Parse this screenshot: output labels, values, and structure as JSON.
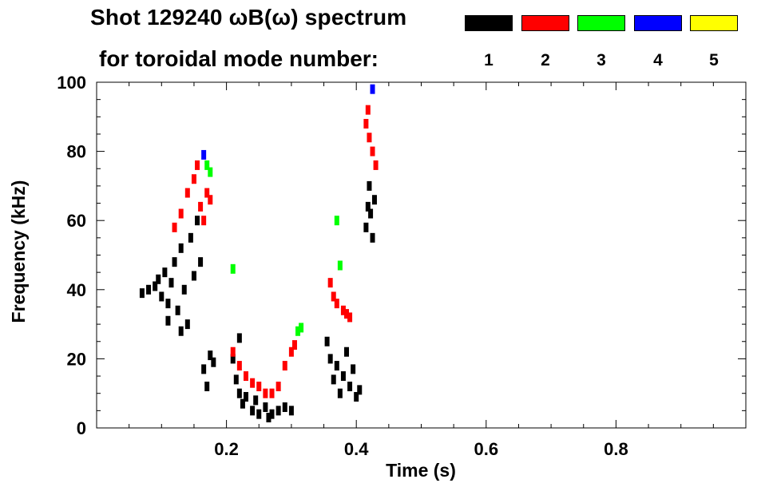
{
  "title": "Shot 129240 ωB(ω) spectrum",
  "subtitle": "for toroidal mode number:",
  "legend": [
    {
      "label": "1",
      "color": "#000000"
    },
    {
      "label": "2",
      "color": "#ff0000"
    },
    {
      "label": "3",
      "color": "#00ff00"
    },
    {
      "label": "4",
      "color": "#0000ff"
    },
    {
      "label": "5",
      "color": "#ffff00"
    }
  ],
  "chart_data": {
    "type": "scatter",
    "title": "Shot 129240 ωB(ω) spectrum",
    "xlabel": "Time (s)",
    "ylabel": "Frequency (kHz)",
    "xlim": [
      0.0,
      1.0
    ],
    "ylim": [
      0,
      100
    ],
    "xticks": [
      {
        "v": 0.2,
        "label": "0.2"
      },
      {
        "v": 0.4,
        "label": "0.4"
      },
      {
        "v": 0.6,
        "label": "0.6"
      },
      {
        "v": 0.8,
        "label": "0.8"
      }
    ],
    "yticks": [
      {
        "v": 0,
        "label": "0"
      },
      {
        "v": 20,
        "label": "20"
      },
      {
        "v": 40,
        "label": "40"
      },
      {
        "v": 60,
        "label": "60"
      },
      {
        "v": 80,
        "label": "80"
      },
      {
        "v": 100,
        "label": "100"
      }
    ],
    "series": [
      {
        "name": "n=1",
        "color": "#000000",
        "points": [
          [
            0.07,
            39
          ],
          [
            0.08,
            40
          ],
          [
            0.09,
            41
          ],
          [
            0.095,
            43
          ],
          [
            0.1,
            38
          ],
          [
            0.105,
            45
          ],
          [
            0.11,
            36
          ],
          [
            0.115,
            42
          ],
          [
            0.12,
            48
          ],
          [
            0.125,
            34
          ],
          [
            0.13,
            52
          ],
          [
            0.135,
            40
          ],
          [
            0.14,
            30
          ],
          [
            0.145,
            55
          ],
          [
            0.15,
            44
          ],
          [
            0.155,
            60
          ],
          [
            0.16,
            48
          ],
          [
            0.13,
            28
          ],
          [
            0.11,
            31
          ],
          [
            0.165,
            17
          ],
          [
            0.17,
            12
          ],
          [
            0.175,
            21
          ],
          [
            0.18,
            19
          ],
          [
            0.21,
            20
          ],
          [
            0.215,
            14
          ],
          [
            0.22,
            10
          ],
          [
            0.225,
            7
          ],
          [
            0.23,
            9
          ],
          [
            0.24,
            5
          ],
          [
            0.25,
            4
          ],
          [
            0.26,
            6
          ],
          [
            0.27,
            4
          ],
          [
            0.28,
            5
          ],
          [
            0.29,
            6
          ],
          [
            0.3,
            5
          ],
          [
            0.22,
            26
          ],
          [
            0.245,
            8
          ],
          [
            0.265,
            3
          ],
          [
            0.355,
            25
          ],
          [
            0.36,
            20
          ],
          [
            0.365,
            14
          ],
          [
            0.37,
            18
          ],
          [
            0.375,
            10
          ],
          [
            0.38,
            15
          ],
          [
            0.385,
            22
          ],
          [
            0.39,
            12
          ],
          [
            0.395,
            17
          ],
          [
            0.4,
            9
          ],
          [
            0.405,
            11
          ],
          [
            0.415,
            58
          ],
          [
            0.418,
            64
          ],
          [
            0.42,
            70
          ],
          [
            0.422,
            62
          ],
          [
            0.425,
            55
          ],
          [
            0.428,
            66
          ]
        ]
      },
      {
        "name": "n=2",
        "color": "#ff0000",
        "points": [
          [
            0.12,
            58
          ],
          [
            0.13,
            62
          ],
          [
            0.14,
            68
          ],
          [
            0.15,
            72
          ],
          [
            0.155,
            76
          ],
          [
            0.16,
            64
          ],
          [
            0.165,
            60
          ],
          [
            0.17,
            68
          ],
          [
            0.175,
            66
          ],
          [
            0.21,
            22
          ],
          [
            0.22,
            18
          ],
          [
            0.23,
            15
          ],
          [
            0.24,
            13
          ],
          [
            0.25,
            12
          ],
          [
            0.26,
            10
          ],
          [
            0.27,
            10
          ],
          [
            0.28,
            12
          ],
          [
            0.29,
            18
          ],
          [
            0.3,
            22
          ],
          [
            0.305,
            24
          ],
          [
            0.36,
            42
          ],
          [
            0.365,
            38
          ],
          [
            0.37,
            36
          ],
          [
            0.38,
            34
          ],
          [
            0.385,
            33
          ],
          [
            0.39,
            32
          ],
          [
            0.415,
            88
          ],
          [
            0.42,
            84
          ],
          [
            0.425,
            80
          ],
          [
            0.43,
            76
          ],
          [
            0.418,
            92
          ]
        ]
      },
      {
        "name": "n=3",
        "color": "#00ff00",
        "points": [
          [
            0.17,
            76
          ],
          [
            0.175,
            74
          ],
          [
            0.21,
            46
          ],
          [
            0.31,
            28
          ],
          [
            0.315,
            29
          ],
          [
            0.37,
            60
          ],
          [
            0.375,
            47
          ]
        ]
      },
      {
        "name": "n=4",
        "color": "#0000ff",
        "points": [
          [
            0.165,
            79
          ],
          [
            0.425,
            98
          ]
        ]
      },
      {
        "name": "n=5",
        "color": "#ffff00",
        "points": []
      }
    ]
  }
}
